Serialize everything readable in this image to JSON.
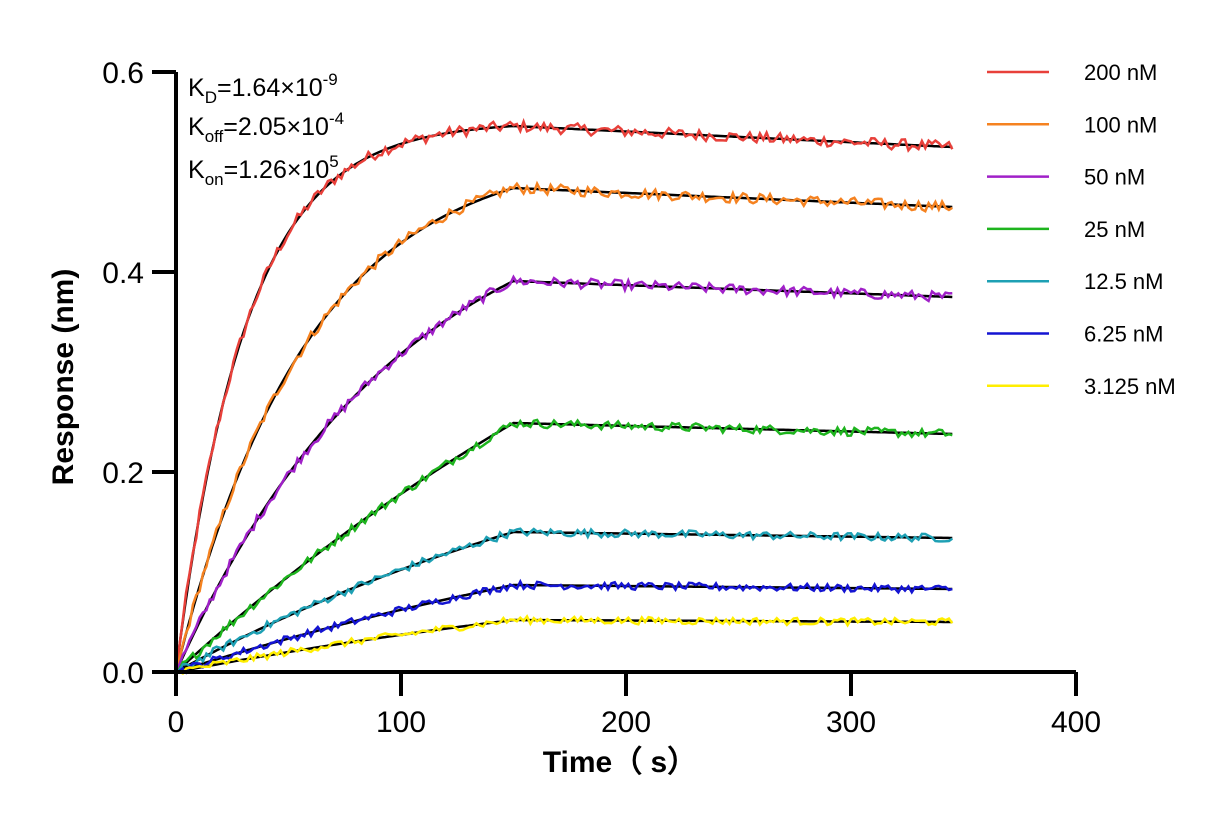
{
  "chart_data": {
    "type": "line",
    "title": "",
    "xlabel": "Time（ s）",
    "ylabel": "Response (nm)",
    "xlim": [
      0,
      400
    ],
    "ylim": [
      0,
      0.6
    ],
    "xticks": [
      "0",
      "100",
      "200",
      "300",
      "400"
    ],
    "yticks": [
      "0.0",
      "0.2",
      "0.4",
      "0.6"
    ],
    "grid": false,
    "legend_position": "right",
    "assoc_end_s": 150,
    "end_s": 345,
    "series": [
      {
        "name": "200 nM",
        "color": "#e8403a",
        "peak": 0.546,
        "end": 0.525
      },
      {
        "name": "100 nM",
        "color": "#f58220",
        "peak": 0.484,
        "end": 0.465
      },
      {
        "name": "50 nM",
        "color": "#a020c8",
        "peak": 0.391,
        "end": 0.375
      },
      {
        "name": "25 nM",
        "color": "#1eb41e",
        "peak": 0.249,
        "end": 0.238
      },
      {
        "name": "12.5 nM",
        "color": "#1ea0b4",
        "peak": 0.14,
        "end": 0.134
      },
      {
        "name": "6.25 nM",
        "color": "#1414d2",
        "peak": 0.087,
        "end": 0.083
      },
      {
        "name": "3.125 nM",
        "color": "#ffee00",
        "peak": 0.052,
        "end": 0.05
      }
    ],
    "fit_color": "#000000",
    "annotations": {
      "kd": {
        "main": "K",
        "sub": "D",
        "value": "=1.64×10",
        "exp": "-9"
      },
      "koff": {
        "main": "K",
        "sub": "off",
        "value": "=2.05×10",
        "exp": "-4"
      },
      "kon": {
        "main": "K",
        "sub": "on",
        "value": "=1.26×10",
        "exp": "5"
      }
    }
  }
}
